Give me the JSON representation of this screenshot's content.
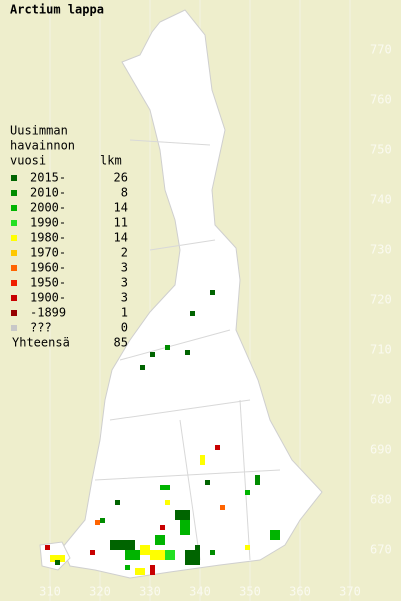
{
  "title": "Arctium lappa",
  "legend": {
    "heading": [
      "Uusimman",
      "havainnon"
    ],
    "col_year": "vuosi",
    "col_count": "lkm",
    "rows": [
      {
        "label": "2015-",
        "count": "26",
        "color": "#006400"
      },
      {
        "label": "2010-",
        "count": "8",
        "color": "#008c00"
      },
      {
        "label": "2000-",
        "count": "14",
        "color": "#00b400"
      },
      {
        "label": "1990-",
        "count": "11",
        "color": "#22e022"
      },
      {
        "label": "1980-",
        "count": "14",
        "color": "#ffff00"
      },
      {
        "label": "1970-",
        "count": "2",
        "color": "#ffc800"
      },
      {
        "label": "1960-",
        "count": "3",
        "color": "#ff6400"
      },
      {
        "label": "1950-",
        "count": "3",
        "color": "#f01e00"
      },
      {
        "label": "1900-",
        "count": "3",
        "color": "#c80000"
      },
      {
        "label": "-1899",
        "count": "1",
        "color": "#960000"
      },
      {
        "label": "???",
        "count": "0",
        "color": "#c8c8c8"
      }
    ],
    "total_label": "Yhteensä",
    "total": "85"
  },
  "y_labels": [
    "770",
    "760",
    "750",
    "740",
    "730",
    "720",
    "710",
    "700",
    "690",
    "680",
    "670"
  ],
  "x_labels": [
    "310",
    "320",
    "330",
    "340",
    "350",
    "360",
    "370"
  ]
}
